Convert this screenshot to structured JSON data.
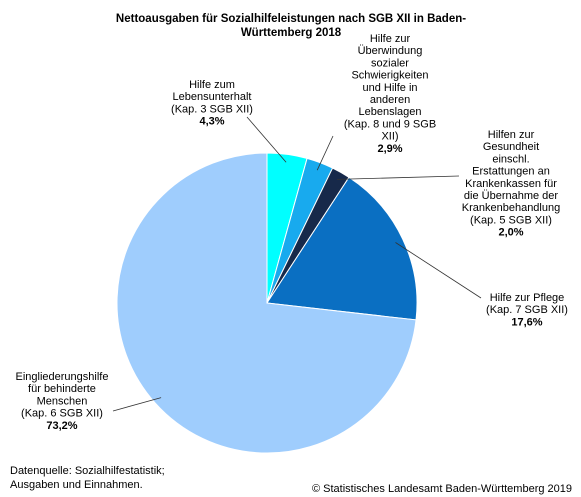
{
  "chart_data": {
    "type": "pie",
    "title": "Nettoausgaben für Sozialhilfeleistungen nach SGB XII in Baden-Württemberg 2018",
    "slices": [
      {
        "label": "Hilfe zum Lebensunterhalt (Kap. 3 SGB XII)",
        "value": 4.3,
        "value_label": "4,3%",
        "color": "#00ffff"
      },
      {
        "label": "Hilfe zur Überwindung sozialer Schwierigkeiten und Hilfe in anderen Lebenslagen (Kap. 8 und 9 SGB XII)",
        "value": 2.9,
        "value_label": "2,9%",
        "color": "#18aaee"
      },
      {
        "label": "Hilfen zur Gesundheit einschl. Erstattungen an Krankenkassen für die Übernahme der Krankenbehandlung (Kap. 5 SGB XII)",
        "value": 2.0,
        "value_label": "2,0%",
        "color": "#17294a"
      },
      {
        "label": "Hilfe zur Pflege (Kap. 7 SGB XII)",
        "value": 17.6,
        "value_label": "17,6%",
        "color": "#0a6fc2"
      },
      {
        "label": "Eingliederungshilfe für behinderte Menschen (Kap. 6 SGB XII)",
        "value": 73.2,
        "value_label": "73,2%",
        "color": "#9fcdfd"
      }
    ]
  },
  "footer": {
    "source": "Datenquelle: Sozialhilfestatistik; Ausgaben und Einnahmen.",
    "copyright": "© Statistisches Landesamt Baden-Württemberg 2019"
  }
}
